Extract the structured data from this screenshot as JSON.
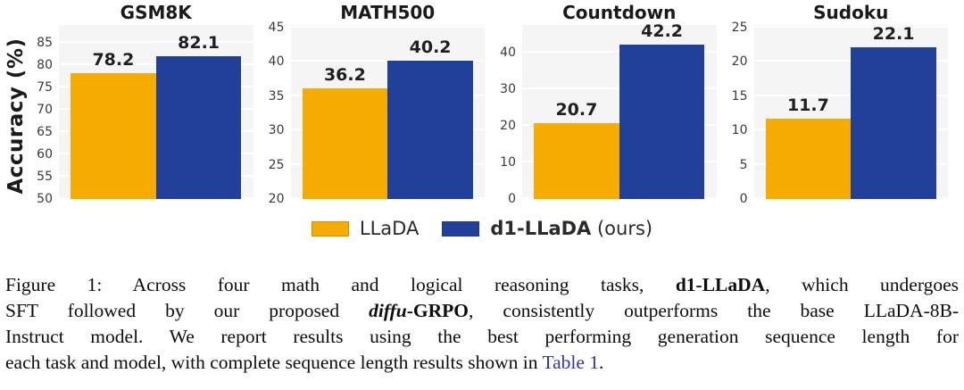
{
  "figure": {
    "ylabel": "Accuracy (%)",
    "colors": {
      "llada_orange": "#F5AB00",
      "d1_blue": "#21409A",
      "plot_background": "#F5F5F6",
      "gridline": "#FFFFFF",
      "title_text": "#1A1A1A",
      "value_label_text": "#1F1F1F",
      "tick_text": "#3A3A3A",
      "link_text": "#3333AA"
    },
    "legend": {
      "items": [
        {
          "color_key": "llada_orange",
          "segments": [
            {
              "text": "LLaDA",
              "style": "normal"
            }
          ]
        },
        {
          "color_key": "d1_blue",
          "segments": [
            {
              "text": "d1-LLaDA",
              "style": "bold"
            },
            {
              "text": " (ours)",
              "style": "normal"
            }
          ]
        }
      ]
    }
  },
  "chart_data": {
    "type": "bar",
    "series_names": [
      "LLaDA",
      "d1-LLaDA (ours)"
    ],
    "series_colors": [
      "#F5AB00",
      "#21409A"
    ],
    "ylabel": "Accuracy (%)",
    "grid": true,
    "legend_position": "bottom",
    "panels": [
      {
        "title": "GSM8K",
        "values": [
          78.2,
          82.1
        ],
        "ylim": [
          50,
          89
        ],
        "yticks": [
          50,
          55,
          60,
          65,
          70,
          75,
          80,
          85
        ]
      },
      {
        "title": "MATH500",
        "values": [
          36.2,
          40.2
        ],
        "ylim": [
          20,
          45.4
        ],
        "yticks": [
          20,
          25,
          30,
          35,
          40,
          45
        ]
      },
      {
        "title": "Countdown",
        "values": [
          20.7,
          42.2
        ],
        "ylim": [
          0,
          47.5
        ],
        "yticks": [
          0,
          10,
          20,
          30,
          40
        ]
      },
      {
        "title": "Sudoku",
        "values": [
          11.7,
          22.1
        ],
        "ylim": [
          0,
          25.4
        ],
        "yticks": [
          0,
          5,
          10,
          15,
          20,
          25
        ]
      }
    ]
  },
  "caption": {
    "lines": [
      {
        "justify": true,
        "segments": [
          {
            "text": "Figure 1:  Across four math and logical reasoning tasks, ",
            "style": "normal"
          },
          {
            "text": "d1-LLaDA",
            "style": "bold"
          },
          {
            "text": ", which undergoes",
            "style": "normal"
          }
        ]
      },
      {
        "justify": true,
        "segments": [
          {
            "text": "SFT followed by our proposed ",
            "style": "normal"
          },
          {
            "text": "diffu",
            "style": "bolditalic"
          },
          {
            "text": "-GRPO",
            "style": "bold"
          },
          {
            "text": ", consistently outperforms the base LLaDA-8B-",
            "style": "normal"
          }
        ]
      },
      {
        "justify": true,
        "segments": [
          {
            "text": "Instruct model. We report results using the best performing generation sequence length for",
            "style": "normal"
          }
        ]
      },
      {
        "justify": false,
        "segments": [
          {
            "text": "each task and model, with complete sequence length results shown in ",
            "style": "normal"
          },
          {
            "text": "Table 1",
            "style": "link"
          },
          {
            "text": ".",
            "style": "normal"
          }
        ]
      }
    ]
  }
}
